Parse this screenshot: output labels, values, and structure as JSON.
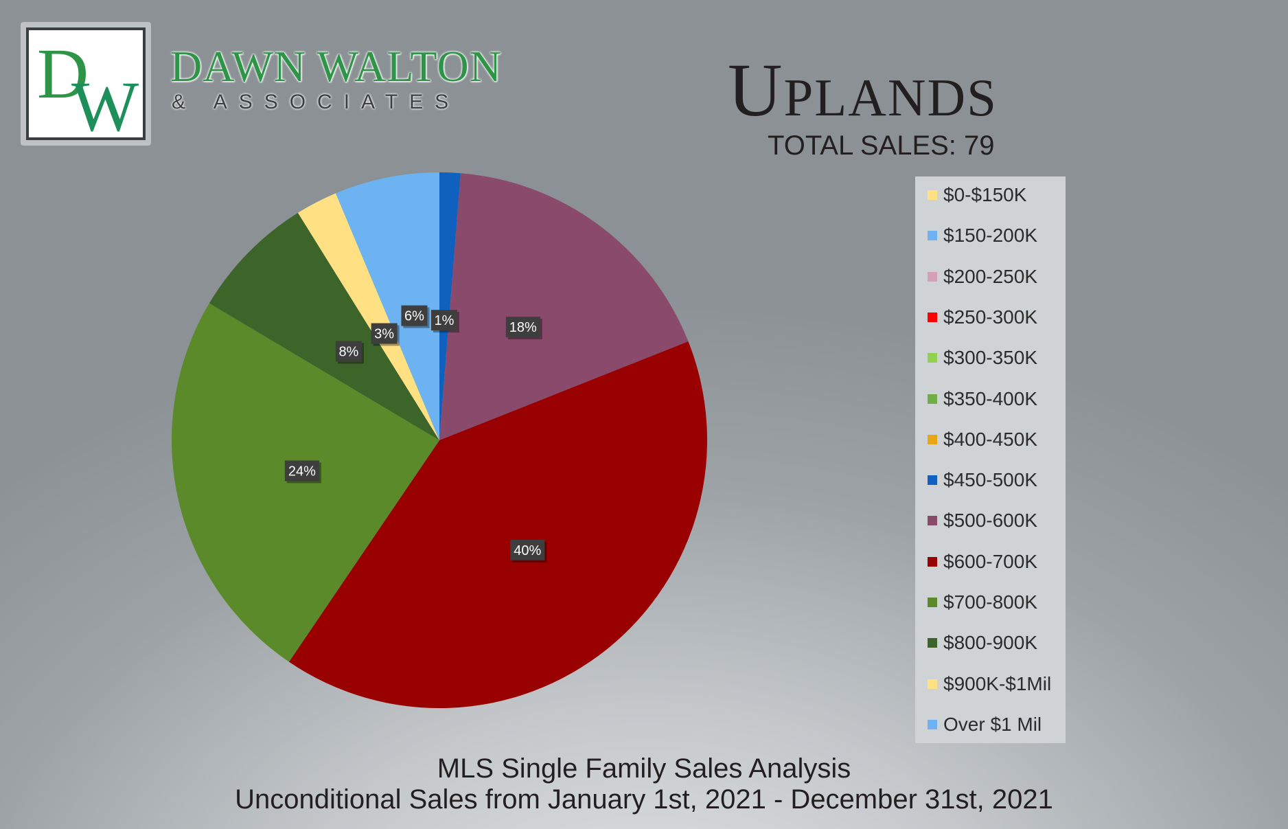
{
  "brand": {
    "monogram": "DW",
    "name": "DAWN WALTON",
    "subtitle": "& ASSOCIATES",
    "colors": {
      "green": "#2e9447",
      "dark": "#3b3f42"
    }
  },
  "header": {
    "title": "Uplands",
    "total_sales": "TOTAL SALES: 79"
  },
  "footer": {
    "line1": "MLS Single Family Sales Analysis",
    "line2": "Unconditional Sales from January 1st, 2021 - December 31st, 2021"
  },
  "chart_data": {
    "type": "pie",
    "legend_position": "right",
    "start_angle_deg": 0,
    "direction": "clockwise",
    "categories": [
      "$0-$150K",
      "$150-200K",
      "$200-250K",
      "$250-300K",
      "$300-350K",
      "$350-400K",
      "$400-450K",
      "$450-500K",
      "$500-600K",
      "$600-700K",
      "$700-800K",
      "$800-900K",
      "$900K-$1Mil",
      "Over $1 Mil"
    ],
    "colors": [
      "#ffe082",
      "#6db3f2",
      "#d49fb7",
      "#ff0000",
      "#92d050",
      "#70ad47",
      "#e6a615",
      "#1060c0",
      "#8a4a6c",
      "#990000",
      "#5a8a2a",
      "#3d6529",
      "#ffe082",
      "#6db3f2"
    ],
    "slices": [
      {
        "label": "$450-500K",
        "value": 1,
        "percent_label": "1%"
      },
      {
        "label": "$500-600K",
        "value": 14,
        "percent_label": "18%"
      },
      {
        "label": "$600-700K",
        "value": 32,
        "percent_label": "40%"
      },
      {
        "label": "$700-800K",
        "value": 19,
        "percent_label": "24%"
      },
      {
        "label": "$800-900K",
        "value": 6,
        "percent_label": "8%"
      },
      {
        "label": "$900K-$1Mil",
        "value": 2,
        "percent_label": "3%"
      },
      {
        "label": "Over $1 Mil",
        "value": 5,
        "percent_label": "6%"
      }
    ]
  }
}
